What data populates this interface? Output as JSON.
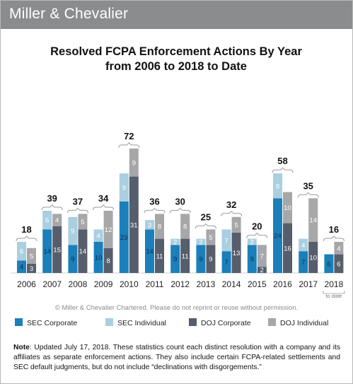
{
  "brand": "Miller & Chevalier",
  "copyright": "© Miller & Chevalier Chartered. Please do not reprint or reuse without permission.",
  "note": {
    "label": "Note",
    "text": ": Updated July 17, 2018. These statistics count each distinct resolution with a company and its affiliates as separate enforcement actions. They also include certain FCPA-related settlements and SEC default judgments, but do not include “declinations with disgorgements.”"
  },
  "colors": {
    "sec_corporate": "#1b7fba",
    "sec_individual": "#a9cfe0",
    "doj_corporate": "#565e6b",
    "doj_individual": "#a7a7a9",
    "header": "#8a8c8e"
  },
  "chart_data": {
    "type": "bar",
    "title": "Resolved FCPA Enforcement Actions By Year",
    "subtitle": "from 2006 to 2018 to Date",
    "categories": [
      "2006",
      "2007",
      "2008",
      "2009",
      "2010",
      "2011",
      "2012",
      "2013",
      "2014",
      "2015",
      "2016",
      "2017",
      "2018"
    ],
    "category_note": {
      "2018": "to date"
    },
    "totals": [
      18,
      39,
      37,
      34,
      72,
      36,
      30,
      25,
      32,
      20,
      58,
      35,
      16
    ],
    "groups": [
      {
        "name": "SEC",
        "stack": [
          "SEC Corporate",
          "SEC Individual"
        ]
      },
      {
        "name": "DOJ",
        "stack": [
          "DOJ Corporate",
          "DOJ Individual"
        ]
      }
    ],
    "series": [
      {
        "name": "SEC Corporate",
        "values": [
          4,
          14,
          9,
          10,
          23,
          14,
          9,
          9,
          7,
          9,
          24,
          7,
          6
        ]
      },
      {
        "name": "SEC Individual",
        "values": [
          6,
          6,
          9,
          4,
          9,
          3,
          2,
          2,
          7,
          2,
          8,
          4,
          0
        ]
      },
      {
        "name": "DOJ Corporate",
        "values": [
          3,
          15,
          14,
          8,
          31,
          11,
          11,
          9,
          13,
          2,
          16,
          10,
          6
        ]
      },
      {
        "name": "DOJ Individual",
        "values": [
          5,
          4,
          5,
          12,
          9,
          8,
          8,
          5,
          5,
          7,
          10,
          14,
          4
        ]
      }
    ],
    "xlabel": "",
    "ylabel": "",
    "ylim": [
      0,
      50
    ],
    "grid": false,
    "legend_position": "bottom"
  }
}
